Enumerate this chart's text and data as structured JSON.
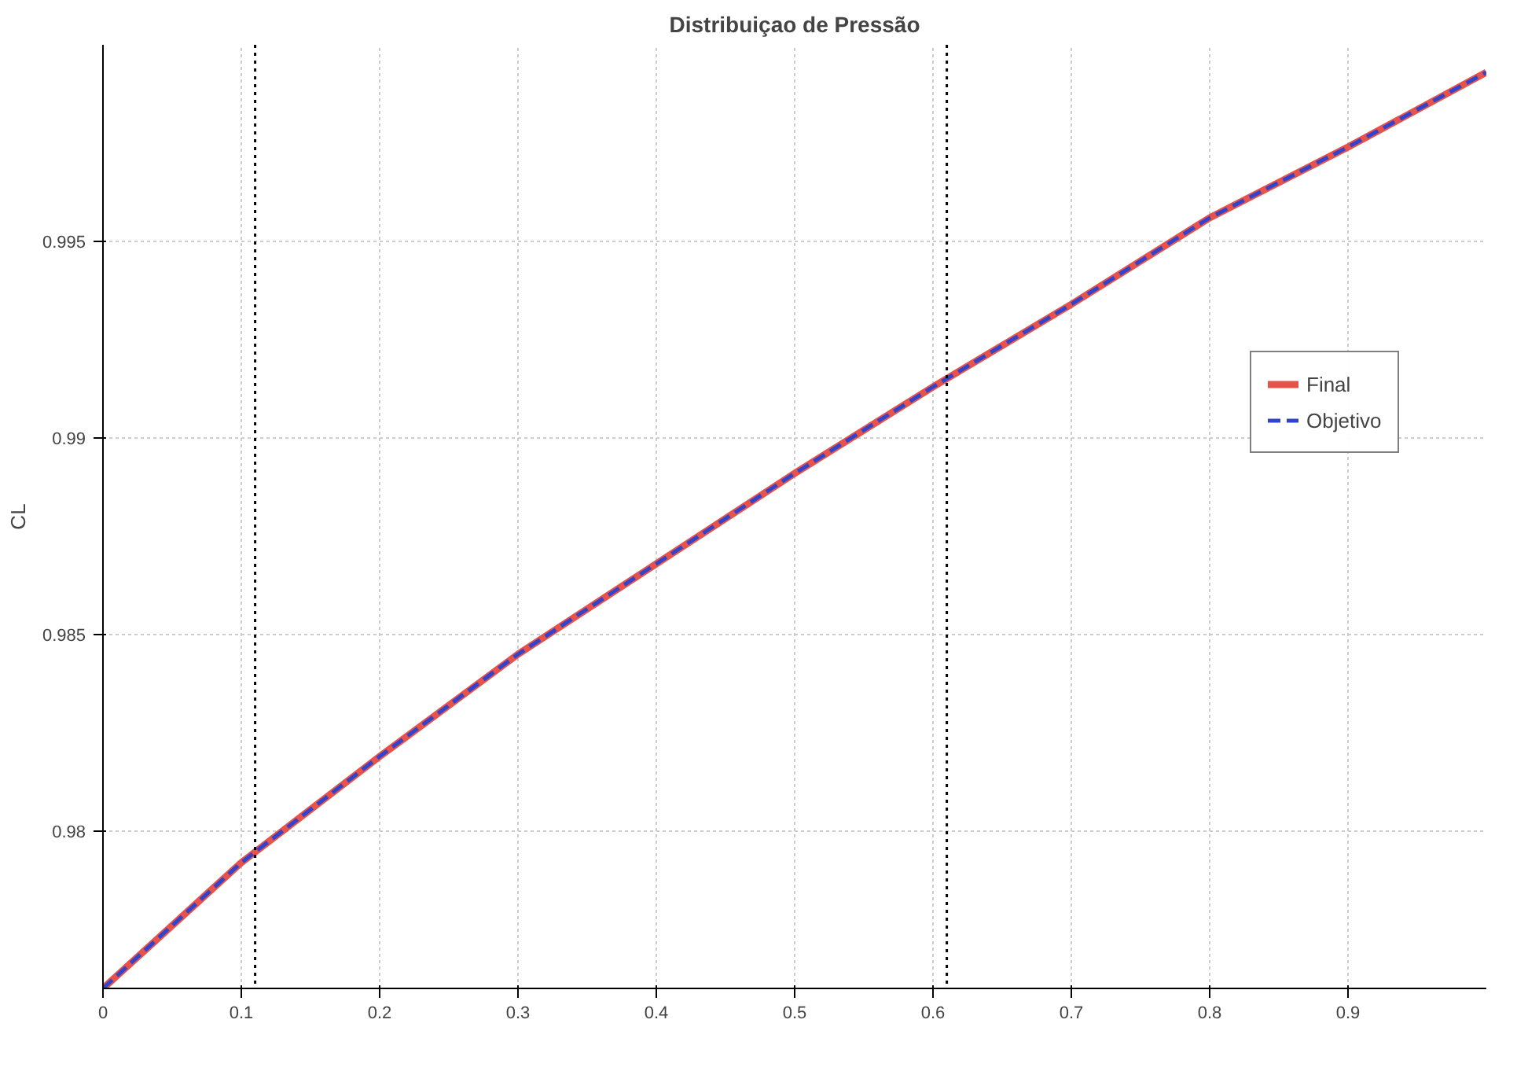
{
  "chart_data": {
    "type": "line",
    "title": "Distribuiçao de Pressão",
    "ylabel": "CL",
    "x": [
      0,
      0.1,
      0.2,
      0.3,
      0.4,
      0.5,
      0.6,
      0.7,
      0.8,
      0.9,
      1.0
    ],
    "series": [
      {
        "name": "Final",
        "color": "#e8524a",
        "line_style": "solid",
        "values": [
          0.976,
          0.9792,
          0.9819,
          0.9845,
          0.9868,
          0.9891,
          0.9913,
          0.9934,
          0.9956,
          0.9974,
          0.9993
        ]
      },
      {
        "name": "Objetivo",
        "color": "#3344cc",
        "line_style": "dashed",
        "values": [
          0.976,
          0.9792,
          0.9819,
          0.9845,
          0.9868,
          0.9891,
          0.9913,
          0.9934,
          0.9956,
          0.9974,
          0.9993
        ]
      }
    ],
    "xlim": [
      0,
      1
    ],
    "ylim": [
      0.976,
      1.0
    ],
    "xticks": [
      0,
      0.1,
      0.2,
      0.3,
      0.4,
      0.5,
      0.6,
      0.7,
      0.8,
      0.9
    ],
    "yticks": [
      0.98,
      0.985,
      0.99,
      0.995
    ],
    "ref_lines": [
      {
        "axis": "x",
        "value": 0.11,
        "color": "#000000",
        "line_style": "dotted"
      },
      {
        "axis": "x",
        "value": 0.61,
        "color": "#000000",
        "line_style": "dotted"
      }
    ],
    "grid": true,
    "legend": "top right",
    "marker": "none"
  }
}
